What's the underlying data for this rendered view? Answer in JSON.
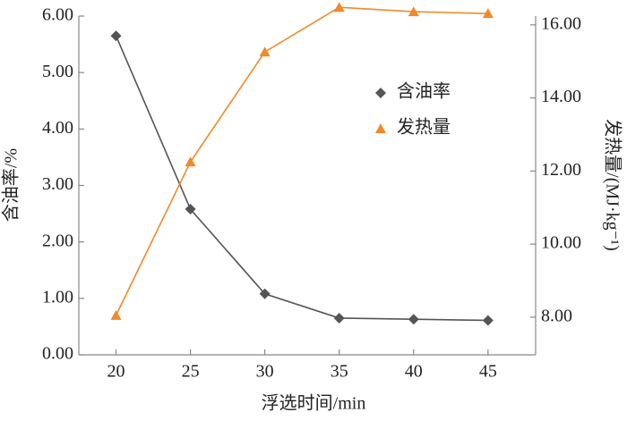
{
  "chart_data": {
    "type": "line",
    "x": [
      20,
      25,
      30,
      35,
      40,
      45
    ],
    "xlim": [
      17.5,
      48.2
    ],
    "xticks": [
      20,
      25,
      30,
      35,
      40,
      45
    ],
    "xlabel": "浮选时间/min",
    "ylabel": "含油率/%",
    "y2label": "发热量/(MJ·kg⁻¹)",
    "ylim": [
      0,
      6
    ],
    "yticks": [
      {
        "value": 0,
        "label": "0.00"
      },
      {
        "value": 1,
        "label": "1.00"
      },
      {
        "value": 2,
        "label": "2.00"
      },
      {
        "value": 3,
        "label": "3.00"
      },
      {
        "value": 4,
        "label": "4.00"
      },
      {
        "value": 5,
        "label": "5.00"
      },
      {
        "value": 6,
        "label": "6.00"
      }
    ],
    "y2lim": [
      6.97,
      16.24
    ],
    "y2ticks": [
      {
        "value": 8,
        "label": "8.00"
      },
      {
        "value": 10,
        "label": "10.00"
      },
      {
        "value": 12,
        "label": "12.00"
      },
      {
        "value": 14,
        "label": "14.00"
      },
      {
        "value": 16,
        "label": "16.00"
      }
    ],
    "series": [
      {
        "name": "含油率",
        "color": "#555555",
        "marker": "diamond",
        "values": [
          5.65,
          2.58,
          1.08,
          0.65,
          0.63,
          0.61
        ]
      },
      {
        "name": "发热量",
        "color": "#f08a2a",
        "marker": "triangle",
        "axis": "y2",
        "values": [
          8.05,
          12.25,
          15.26,
          16.48,
          16.36,
          16.31
        ]
      }
    ]
  }
}
